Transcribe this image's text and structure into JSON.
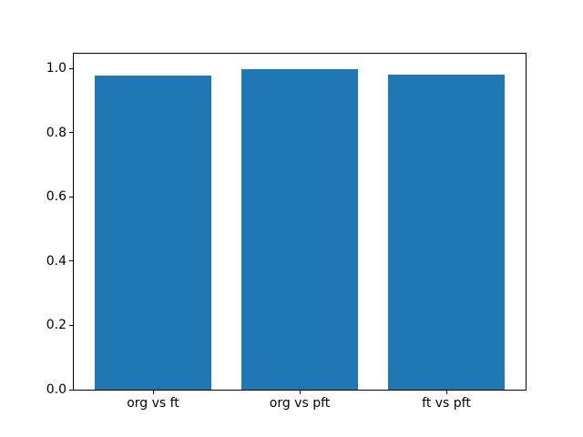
{
  "chart_data": {
    "type": "bar",
    "categories": [
      "org vs ft",
      "org vs pft",
      "ft vs pft"
    ],
    "values": [
      0.979,
      0.998,
      0.981
    ],
    "title": "",
    "xlabel": "",
    "ylabel": "",
    "ylim": [
      0,
      1.046
    ],
    "xlim": [
      -0.54,
      2.54
    ],
    "yticks": [
      0.0,
      0.2,
      0.4,
      0.6,
      0.8,
      1.0
    ],
    "ytick_labels": [
      "0.0",
      "0.2",
      "0.4",
      "0.6",
      "0.8",
      "1.0"
    ],
    "bar_width": 0.8,
    "bar_color": "#1f77b4",
    "background_color": "#ffffff",
    "spine_color": "#000000",
    "grid": false,
    "legend": null
  }
}
